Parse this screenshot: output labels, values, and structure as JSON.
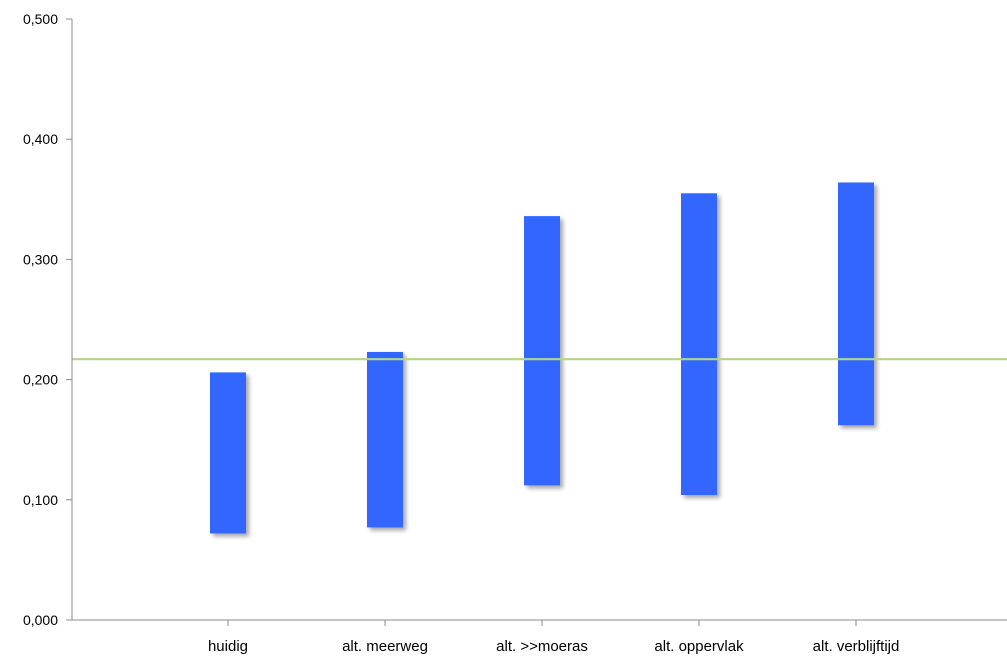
{
  "chart_data": {
    "type": "bar",
    "title": "",
    "xlabel": "",
    "ylabel": "",
    "categories": [
      "huidig",
      "alt. meerweg",
      "alt. >>moeras",
      "alt. oppervlak",
      "alt. verblijftijd"
    ],
    "series": [
      {
        "type": "range",
        "low": [
          0.072,
          0.077,
          0.112,
          0.104,
          0.162
        ],
        "high": [
          0.206,
          0.223,
          0.336,
          0.355,
          0.364
        ],
        "color": "#3366ff"
      }
    ],
    "reference_line": {
      "value": 0.217,
      "color": "#b5d38a"
    },
    "ylim": [
      0,
      0.5
    ],
    "yticks": [
      0,
      0.1,
      0.2,
      0.3,
      0.4,
      0.5
    ],
    "ytick_labels": [
      "0,000",
      "0,100",
      "0,200",
      "0,300",
      "0,400",
      "0,500"
    ],
    "grid": false,
    "legend": "none"
  }
}
